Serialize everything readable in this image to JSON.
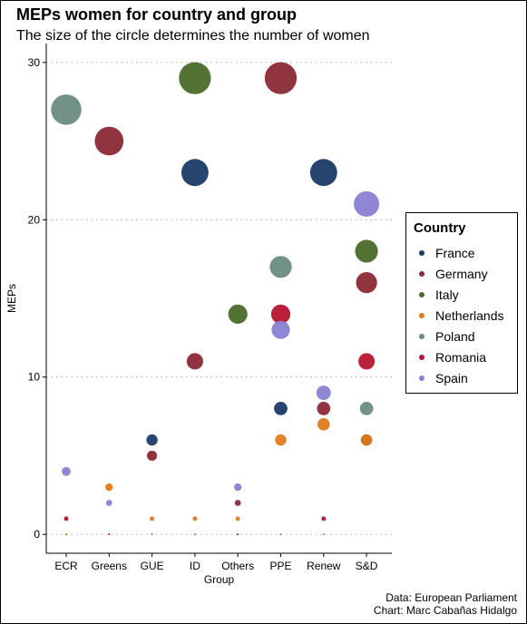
{
  "title": "MEPs women for country and group",
  "subtitle": "The size of the circle determines the number of women",
  "caption": [
    "Data: European Parliament",
    "Chart: Marc Cabañas Hidalgo"
  ],
  "legend": {
    "title": "Country",
    "items": [
      {
        "label": "France",
        "color": "#1b3a66"
      },
      {
        "label": "Germany",
        "color": "#8c2935"
      },
      {
        "label": "Italy",
        "color": "#4a6b29"
      },
      {
        "label": "Netherlands",
        "color": "#e07b1a"
      },
      {
        "label": "Poland",
        "color": "#6a8c7e"
      },
      {
        "label": "Romania",
        "color": "#b5142f"
      },
      {
        "label": "Spain",
        "color": "#8a7fd4"
      }
    ]
  },
  "chart_data": {
    "type": "scatter",
    "xlabel": "Group",
    "ylabel": "MEPs",
    "categories": [
      "ECR",
      "Greens",
      "GUE",
      "ID",
      "Others",
      "PPE",
      "Renew",
      "S&D"
    ],
    "ylim": [
      -1.2,
      31.2
    ],
    "yticks": [
      0,
      10,
      20,
      30
    ],
    "grid": "horizontal-dotted",
    "legend_position": "right",
    "series": [
      {
        "name": "France",
        "color": "#1b3a66",
        "values": [
          0,
          0,
          6,
          23,
          0,
          8,
          23,
          6
        ]
      },
      {
        "name": "Germany",
        "color": "#8c2935",
        "values": [
          0,
          25,
          5,
          11,
          2,
          29,
          8,
          16
        ]
      },
      {
        "name": "Italy",
        "color": "#4a6b29",
        "values": [
          0,
          0,
          0,
          29,
          14,
          0,
          0,
          18
        ]
      },
      {
        "name": "Netherlands",
        "color": "#e07b1a",
        "values": [
          0,
          3,
          1,
          1,
          1,
          6,
          7,
          6
        ]
      },
      {
        "name": "Poland",
        "color": "#6a8c7e",
        "values": [
          27,
          0,
          0,
          0,
          0,
          17,
          0,
          8
        ]
      },
      {
        "name": "Romania",
        "color": "#b5142f",
        "values": [
          1,
          0,
          0,
          0,
          0,
          14,
          1,
          11
        ]
      },
      {
        "name": "Spain",
        "color": "#8a7fd4",
        "values": [
          4,
          2,
          0,
          0,
          3,
          13,
          9,
          21
        ]
      }
    ]
  }
}
